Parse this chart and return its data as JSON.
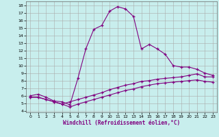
{
  "xlabel": "Windchill (Refroidissement éolien,°C)",
  "background_color": "#c8eeed",
  "line_color": "#800080",
  "grid_color": "#aaaaaa",
  "xlim": [
    -0.5,
    23.5
  ],
  "ylim": [
    3.8,
    18.5
  ],
  "xticks": [
    0,
    1,
    2,
    3,
    4,
    5,
    6,
    7,
    8,
    9,
    10,
    11,
    12,
    13,
    14,
    15,
    16,
    17,
    18,
    19,
    20,
    21,
    22,
    23
  ],
  "yticks": [
    4,
    5,
    6,
    7,
    8,
    9,
    10,
    11,
    12,
    13,
    14,
    15,
    16,
    17,
    18
  ],
  "line1_x": [
    0,
    1,
    2,
    3,
    4,
    5,
    6,
    7,
    8,
    9,
    10,
    11,
    12,
    13,
    14,
    15,
    16,
    17,
    18,
    19,
    20,
    21,
    22,
    23
  ],
  "line1_y": [
    6.0,
    6.2,
    5.8,
    5.3,
    5.2,
    4.8,
    8.3,
    12.2,
    14.8,
    15.3,
    17.2,
    17.8,
    17.5,
    16.5,
    12.2,
    12.8,
    12.2,
    11.5,
    10.0,
    9.8,
    9.8,
    9.5,
    9.0,
    8.7
  ],
  "line2_x": [
    0,
    1,
    2,
    3,
    4,
    5,
    6,
    7,
    8,
    9,
    10,
    11,
    12,
    13,
    14,
    15,
    16,
    17,
    18,
    19,
    20,
    21,
    22,
    23
  ],
  "line2_y": [
    5.8,
    5.8,
    5.5,
    5.2,
    4.9,
    5.2,
    5.5,
    5.8,
    6.1,
    6.4,
    6.8,
    7.1,
    7.4,
    7.6,
    7.9,
    8.0,
    8.2,
    8.3,
    8.4,
    8.5,
    8.7,
    8.9,
    8.5,
    8.5
  ],
  "line3_x": [
    0,
    1,
    2,
    3,
    4,
    5,
    6,
    7,
    8,
    9,
    10,
    11,
    12,
    13,
    14,
    15,
    16,
    17,
    18,
    19,
    20,
    21,
    22,
    23
  ],
  "line3_y": [
    5.8,
    5.8,
    5.5,
    5.2,
    4.9,
    4.5,
    4.9,
    5.2,
    5.5,
    5.8,
    6.1,
    6.4,
    6.7,
    6.9,
    7.2,
    7.4,
    7.6,
    7.7,
    7.8,
    7.9,
    8.0,
    8.1,
    7.9,
    7.8
  ]
}
